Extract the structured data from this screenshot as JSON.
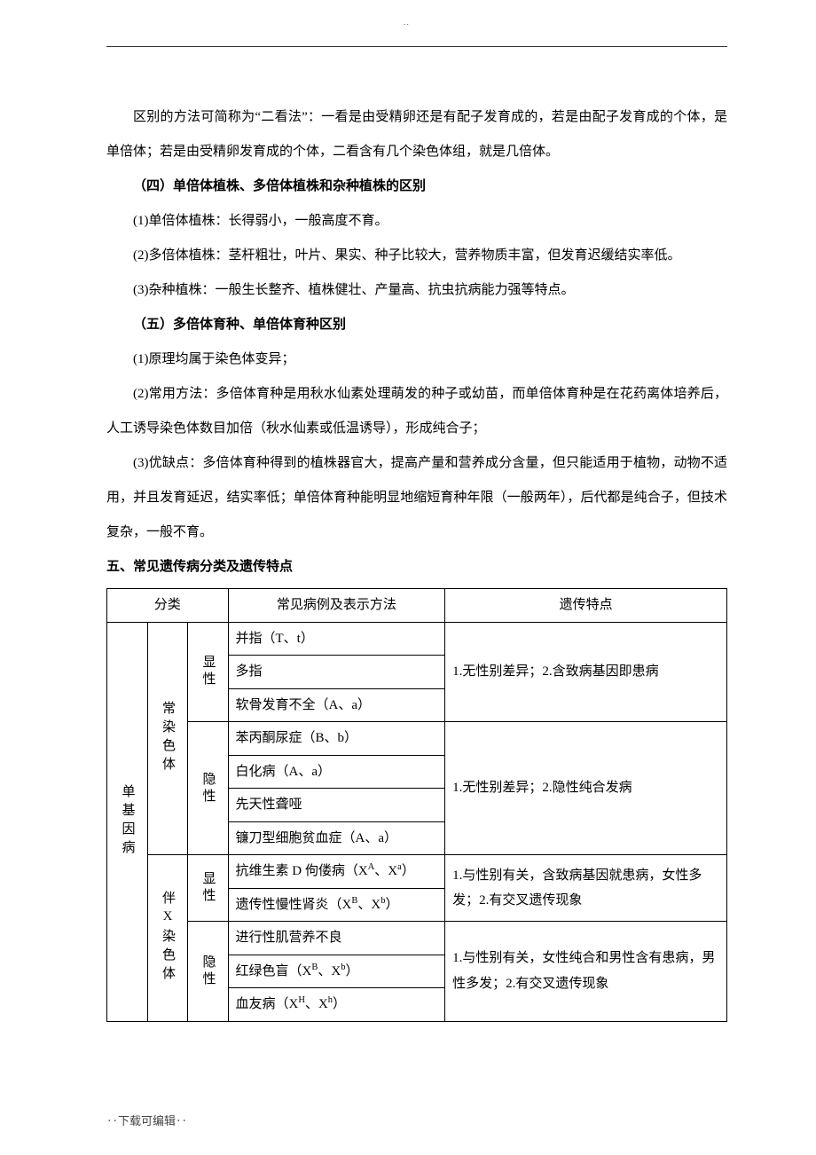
{
  "header_dots": "‥",
  "body": {
    "p1": "区别的方法可简称为“二看法”：一看是由受精卵还是有配子发育成的，若是由配子发育成的个体，是单倍体；若是由受精卵发育成的个体，二看含有几个染色体组，就是几倍体。",
    "h4": "（四）单倍体植株、多倍体植株和杂种植株的区别",
    "p4_1": "(1)单倍体植株：长得弱小，一般高度不育。",
    "p4_2": "(2)多倍体植株：茎杆粗壮，叶片、果实、种子比较大，营养物质丰富，但发育迟缓结实率低。",
    "p4_3": "(3)杂种植株：一般生长整齐、植株健壮、产量高、抗虫抗病能力强等特点。",
    "h5": "（五）多倍体育种、单倍体育种区别",
    "p5_1": "(1)原理均属于染色体变异；",
    "p5_2": "(2)常用方法：多倍体育种是用秋水仙素处理萌发的种子或幼苗，而单倍体育种是在花药离体培养后，人工诱导染色体数目加倍（秋水仙素或低温诱导），形成纯合子；",
    "p5_3": "(3)优缺点：多倍体育种得到的植株器官大，提高产量和营养成分含量，但只能适用于植物，动物不适用，并且发育延迟，结实率低；单倍体育种能明显地缩短育种年限（一般两年），后代都是纯合子，但技术复杂，一般不育。",
    "h_sec5": "五、常见遗传病分类及遗传特点"
  },
  "table": {
    "head_cat": "分类",
    "head_examples": "常见病例及表示方法",
    "head_traits": "遗传特点",
    "lvl1_single": "单基因病",
    "lvl2_auto": "常染色体",
    "lvl2_x": "伴X染色体",
    "lvl3_dom": "显性",
    "lvl3_rec": "隐性",
    "auto_dom_1": "并指（T、t）",
    "auto_dom_2": "多指",
    "auto_dom_3": "软骨发育不全（A、a）",
    "auto_dom_trait": "1.无性别差异；2.含致病基因即患病",
    "auto_rec_1": "苯丙酮尿症（B、b）",
    "auto_rec_2": "白化病（A、a）",
    "auto_rec_3": "先天性聋哑",
    "auto_rec_4": "镰刀型细胞贫血症（A、a）",
    "auto_rec_trait": "1.无性别差异；2.隐性纯合发病",
    "x_dom_1_pre": "抗维生素 D 佝偻病（X",
    "x_dom_1_supA": "A",
    "x_dom_1_mid": "、X",
    "x_dom_1_supa": "a",
    "x_dom_1_post": "）",
    "x_dom_2_pre": "遗传性慢性肾炎（X",
    "x_dom_2_supB": "B",
    "x_dom_2_mid": "、X",
    "x_dom_2_supb": "b",
    "x_dom_2_post": "）",
    "x_dom_trait": "1.与性别有关，含致病基因就患病，女性多发；2.有交叉遗传现象",
    "x_rec_1": "进行性肌营养不良",
    "x_rec_2_pre": "红绿色盲（X",
    "x_rec_2_supB": "B",
    "x_rec_2_mid": "、X",
    "x_rec_2_supb": "b",
    "x_rec_2_post": "）",
    "x_rec_3_pre": "血友病（X",
    "x_rec_3_supH": "H",
    "x_rec_3_mid": "、X",
    "x_rec_3_suph": "h",
    "x_rec_3_post": "）",
    "x_rec_trait": "1.与性别有关，女性纯合和男性含有患病，男性多发；2.有交叉遗传现象"
  },
  "footer": "‥下载可编辑‥",
  "col_widths": {
    "c1": "4%",
    "c2": "4%",
    "c3": "4%",
    "c4": "38%",
    "c5": "50%"
  }
}
